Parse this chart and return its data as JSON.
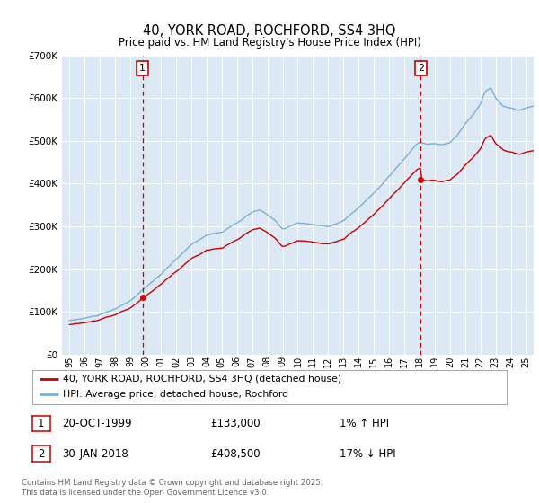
{
  "title": "40, YORK ROAD, ROCHFORD, SS4 3HQ",
  "subtitle": "Price paid vs. HM Land Registry's House Price Index (HPI)",
  "ymax": 700000,
  "xmin": 1994.5,
  "xmax": 2025.5,
  "sale1_year": 1999.8,
  "sale1_price": 133000,
  "sale1_label": "1",
  "sale1_date": "20-OCT-1999",
  "sale1_price_str": "£133,000",
  "sale1_hpi": "1% ↑ HPI",
  "sale2_year": 2018.08,
  "sale2_price": 408500,
  "sale2_label": "2",
  "sale2_date": "30-JAN-2018",
  "sale2_price_str": "£408,500",
  "sale2_hpi": "17% ↓ HPI",
  "legend_line1": "40, YORK ROAD, ROCHFORD, SS4 3HQ (detached house)",
  "legend_line2": "HPI: Average price, detached house, Rochford",
  "footnote": "Contains HM Land Registry data © Crown copyright and database right 2025.\nThis data is licensed under the Open Government Licence v3.0.",
  "bg_color": "#dce9f5",
  "line_color_red": "#cc0000",
  "line_color_blue": "#7ab0d4",
  "grid_color": "#ffffff",
  "vline_color": "#cc0000"
}
